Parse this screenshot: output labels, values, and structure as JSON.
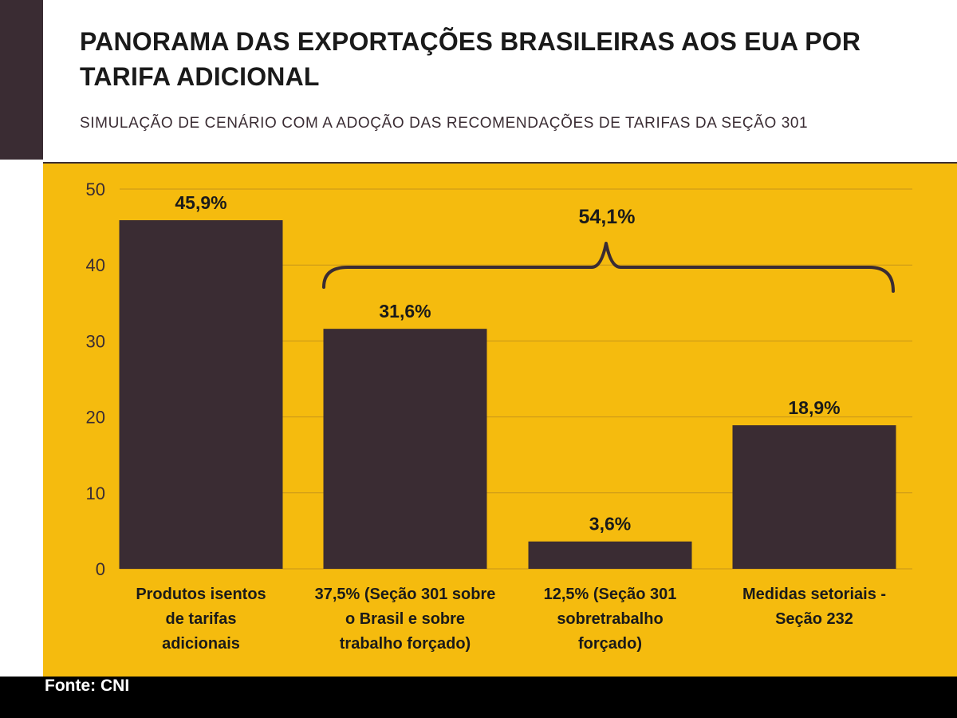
{
  "header": {
    "title": "PANORAMA DAS EXPORTAÇÕES BRASILEIRAS AOS EUA POR TARIFA ADICIONAL",
    "subtitle": "SIMULAÇÃO DE CENÁRIO COM A ADOÇÃO DAS RECOMENDAÇÕES DE TARIFAS DA SEÇÃO 301"
  },
  "footer": {
    "source": "Fonte: CNI"
  },
  "colors": {
    "panel": "#f5bb0e",
    "bar": "#3a2c33",
    "text": "#1a1a1a"
  },
  "chart_data": {
    "type": "bar",
    "categories": [
      [
        "Produtos isentos",
        "de tarifas",
        "adicionais"
      ],
      [
        "37,5% (Seção 301 sobre",
        "o Brasil e sobre",
        "trabalho forçado)"
      ],
      [
        "12,5% (Seção 301",
        "sobretrabalho",
        "forçado)"
      ],
      [
        "Medidas setoriais -",
        "Seção 232"
      ]
    ],
    "values": [
      45.9,
      31.6,
      3.6,
      18.9
    ],
    "data_labels": [
      "45,9%",
      "31,6%",
      "3,6%",
      "18,9%"
    ],
    "yticks": [
      0,
      10,
      20,
      30,
      40,
      50
    ],
    "ylim": [
      0,
      50
    ],
    "grid": true,
    "legend": "none",
    "annotation": {
      "text": "54,1%",
      "type": "brace",
      "spans_categories": [
        1,
        3
      ]
    }
  }
}
